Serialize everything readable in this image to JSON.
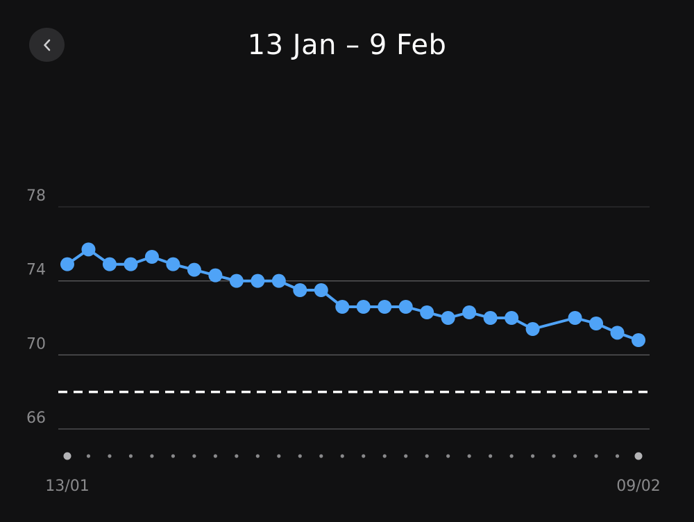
{
  "header": {
    "title": "13 Jan – 9 Feb",
    "back_icon": "chevron-left-icon"
  },
  "colors": {
    "background": "#111112",
    "line": "#4fa3f7",
    "grid": "#5a5a5c",
    "target": "#ffffff",
    "axis_text": "#8a8a8c",
    "dot_small": "#8a8a8c",
    "dot_large": "#b4b4b6"
  },
  "chart_data": {
    "type": "line",
    "title": "13 Jan – 9 Feb",
    "y_ticks": [
      "78",
      "74",
      "70",
      "66"
    ],
    "y_tick_values": [
      78,
      74,
      70,
      66
    ],
    "ylim": [
      66,
      78
    ],
    "x_range": [
      1,
      28
    ],
    "x_tick_labels": [
      {
        "day": 1,
        "label": "13/01"
      },
      {
        "day": 28,
        "label": "09/02"
      }
    ],
    "target_line": 68,
    "grid": true,
    "series": [
      {
        "points": [
          {
            "day": 1,
            "value": 74.9
          },
          {
            "day": 2,
            "value": 75.7
          },
          {
            "day": 3,
            "value": 74.9
          },
          {
            "day": 4,
            "value": 74.9
          },
          {
            "day": 5,
            "value": 75.3
          },
          {
            "day": 6,
            "value": 74.9
          },
          {
            "day": 7,
            "value": 74.6
          },
          {
            "day": 8,
            "value": 74.3
          },
          {
            "day": 9,
            "value": 74.0
          },
          {
            "day": 10,
            "value": 74.0
          },
          {
            "day": 11,
            "value": 74.0
          },
          {
            "day": 12,
            "value": 73.5
          },
          {
            "day": 13,
            "value": 73.5
          },
          {
            "day": 14,
            "value": 72.6
          },
          {
            "day": 15,
            "value": 72.6
          },
          {
            "day": 16,
            "value": 72.6
          },
          {
            "day": 17,
            "value": 72.6
          },
          {
            "day": 18,
            "value": 72.3
          },
          {
            "day": 19,
            "value": 72.0
          },
          {
            "day": 20,
            "value": 72.3
          },
          {
            "day": 21,
            "value": 72.0
          },
          {
            "day": 22,
            "value": 72.0
          },
          {
            "day": 23,
            "value": 71.4
          },
          {
            "day": 25,
            "value": 72.0
          },
          {
            "day": 26,
            "value": 71.7
          },
          {
            "day": 27,
            "value": 71.2
          },
          {
            "day": 28,
            "value": 70.8
          }
        ]
      }
    ]
  }
}
